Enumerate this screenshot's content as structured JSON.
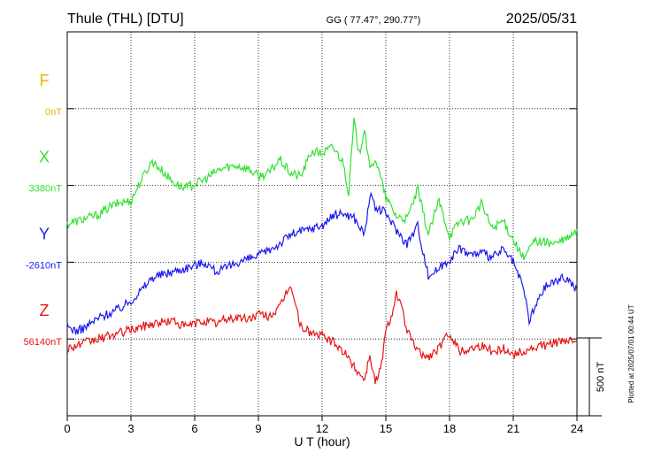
{
  "header": {
    "station": "Thule (THL)  [DTU]",
    "coords": "GG ( 77.47°, 290.77°)",
    "date": "2025/05/31"
  },
  "side_note": "Plotted at 2025/07/01 00:44 UT",
  "chart_data": {
    "type": "line",
    "xlabel": "U T (hour)",
    "xlim": [
      0,
      24
    ],
    "xticks": [
      0,
      3,
      6,
      9,
      12,
      15,
      18,
      21,
      24
    ],
    "tick_labels": [
      "0",
      "3",
      "6",
      "9",
      "12",
      "15",
      "18",
      "21",
      "24"
    ],
    "grid": true,
    "scale_bar": {
      "label": "500 nT",
      "value_nT": 500
    },
    "series": [
      {
        "name": "F",
        "baseline_label": "0nT",
        "color": "#f0b000",
        "values": []
      },
      {
        "name": "X",
        "baseline_label": "3380nT",
        "color": "#33e033",
        "x": [
          0,
          0.5,
          1,
          1.5,
          2,
          2.5,
          3,
          3.5,
          4,
          4.5,
          5,
          5.5,
          6,
          6.5,
          7,
          7.5,
          8,
          8.5,
          9,
          9.5,
          10,
          10.5,
          11,
          11.5,
          12,
          12.5,
          13,
          13.25,
          13.5,
          13.75,
          14,
          14.25,
          14.5,
          14.75,
          15,
          15.5,
          16,
          16.5,
          17,
          17.5,
          18,
          18.5,
          19,
          19.5,
          20,
          20.5,
          21,
          21.5,
          22,
          22.5,
          23,
          23.5,
          24
        ],
        "values": [
          -250,
          -230,
          -210,
          -190,
          -140,
          -110,
          -100,
          40,
          160,
          90,
          20,
          -20,
          10,
          40,
          90,
          120,
          130,
          110,
          60,
          80,
          170,
          80,
          60,
          220,
          210,
          250,
          150,
          -50,
          420,
          200,
          380,
          90,
          180,
          50,
          -80,
          -200,
          -220,
          -30,
          -320,
          -100,
          -330,
          -230,
          -230,
          -120,
          -280,
          -230,
          -350,
          -480,
          -360,
          -370,
          -380,
          -350,
          -300
        ]
      },
      {
        "name": "Y",
        "baseline_label": "-2610nT",
        "color": "#1a1aee",
        "x": [
          0,
          0.5,
          1,
          1.5,
          2,
          2.5,
          3,
          3.5,
          4,
          4.5,
          5,
          5.5,
          6,
          6.5,
          7,
          7.5,
          8,
          8.5,
          9,
          9.5,
          10,
          10.5,
          11,
          11.5,
          12,
          12.5,
          13,
          13.5,
          14,
          14.25,
          14.5,
          14.75,
          15,
          15.5,
          16,
          16.5,
          17,
          17.5,
          18,
          18.5,
          19,
          19.5,
          20,
          20.5,
          21,
          21.5,
          21.75,
          22,
          22.5,
          23,
          23.5,
          24
        ],
        "values": [
          -420,
          -450,
          -410,
          -360,
          -330,
          -300,
          -250,
          -180,
          -100,
          -80,
          -60,
          -40,
          -20,
          0,
          -60,
          -40,
          0,
          20,
          40,
          80,
          120,
          180,
          200,
          220,
          240,
          300,
          320,
          290,
          180,
          440,
          350,
          340,
          320,
          210,
          120,
          240,
          -90,
          -40,
          20,
          90,
          50,
          60,
          30,
          80,
          0,
          -180,
          -380,
          -300,
          -160,
          -120,
          -100,
          -180
        ]
      },
      {
        "name": "Z",
        "baseline_label": "56140nT",
        "color": "#e81414",
        "x": [
          0,
          0.5,
          1,
          1.5,
          2,
          2.5,
          3,
          3.5,
          4,
          4.5,
          5,
          5.5,
          6,
          6.5,
          7,
          7.5,
          8,
          8.5,
          9,
          9.5,
          10,
          10.5,
          11,
          11.5,
          12,
          12.5,
          13,
          13.5,
          14,
          14.25,
          14.5,
          14.75,
          15,
          15.25,
          15.5,
          15.75,
          16,
          16.5,
          17,
          17.5,
          18,
          18.5,
          19,
          19.5,
          20,
          20.5,
          21,
          21.5,
          22,
          22.5,
          23,
          23.5,
          24
        ],
        "values": [
          -60,
          -40,
          -20,
          0,
          20,
          40,
          60,
          80,
          100,
          110,
          120,
          80,
          100,
          120,
          100,
          130,
          140,
          130,
          160,
          150,
          200,
          360,
          80,
          40,
          20,
          -20,
          -80,
          -180,
          -260,
          -100,
          -280,
          -200,
          50,
          150,
          300,
          200,
          50,
          -80,
          -120,
          -60,
          40,
          -80,
          -60,
          -40,
          -80,
          -60,
          -100,
          -80,
          -60,
          -40,
          -20,
          -20,
          0
        ]
      }
    ]
  }
}
